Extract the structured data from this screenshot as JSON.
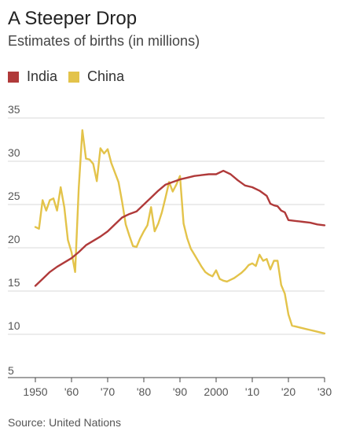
{
  "title": "A Steeper Drop",
  "subtitle": "Estimates of births (in millions)",
  "source": "Source: United Nations",
  "colors": {
    "india": "#b03a3a",
    "china": "#e3c34a",
    "grid": "#d9d9d9",
    "axis": "#444444"
  },
  "chart_data": {
    "type": "line",
    "title": "A Steeper Drop",
    "subtitle": "Estimates of births (in millions)",
    "xlabel": "",
    "ylabel": "",
    "xlim": [
      1950,
      2030
    ],
    "ylim": [
      5,
      35
    ],
    "y_ticks": [
      5,
      10,
      15,
      20,
      25,
      30,
      35
    ],
    "y_tick_labels": [
      "5",
      "10",
      "15",
      "20",
      "25",
      "30",
      "35"
    ],
    "x_ticks": [
      1950,
      1960,
      1970,
      1980,
      1990,
      2000,
      2010,
      2020,
      2030
    ],
    "x_tick_labels": [
      "1950",
      "'60",
      "'70",
      "'80",
      "'90",
      "2000",
      "'10",
      "'20",
      "'30"
    ],
    "grid": "horizontal",
    "legend_position": "top-left",
    "series": [
      {
        "name": "India",
        "color": "#b03a3a",
        "x": [
          1950,
          1952,
          1954,
          1956,
          1958,
          1960,
          1962,
          1964,
          1966,
          1968,
          1970,
          1972,
          1974,
          1976,
          1978,
          1980,
          1982,
          1984,
          1986,
          1988,
          1990,
          1992,
          1994,
          1996,
          1998,
          2000,
          2002,
          2004,
          2006,
          2008,
          2010,
          2012,
          2014,
          2015,
          2016,
          2017,
          2018,
          2019,
          2020,
          2022,
          2024,
          2026,
          2028,
          2030
        ],
        "y": [
          15.6,
          16.4,
          17.2,
          17.8,
          18.3,
          18.8,
          19.5,
          20.3,
          20.8,
          21.3,
          21.9,
          22.7,
          23.5,
          23.9,
          24.2,
          25.0,
          25.8,
          26.6,
          27.3,
          27.6,
          27.9,
          28.1,
          28.3,
          28.4,
          28.5,
          28.5,
          28.9,
          28.5,
          27.8,
          27.2,
          27.0,
          26.6,
          26.0,
          25.1,
          24.9,
          24.8,
          24.3,
          24.1,
          23.2,
          23.1,
          23.0,
          22.9,
          22.7,
          22.6
        ]
      },
      {
        "name": "China",
        "color": "#e3c34a",
        "x": [
          1950,
          1951,
          1952,
          1953,
          1954,
          1955,
          1956,
          1957,
          1958,
          1959,
          1960,
          1961,
          1962,
          1963,
          1964,
          1965,
          1966,
          1967,
          1968,
          1969,
          1970,
          1971,
          1972,
          1973,
          1974,
          1975,
          1976,
          1977,
          1978,
          1979,
          1980,
          1981,
          1982,
          1983,
          1984,
          1985,
          1986,
          1987,
          1988,
          1989,
          1990,
          1991,
          1992,
          1993,
          1994,
          1995,
          1996,
          1997,
          1998,
          1999,
          2000,
          2001,
          2002,
          2003,
          2004,
          2005,
          2006,
          2007,
          2008,
          2009,
          2010,
          2011,
          2012,
          2013,
          2014,
          2015,
          2016,
          2017,
          2018,
          2019,
          2020,
          2021,
          2022,
          2023,
          2024,
          2025,
          2026,
          2027,
          2028,
          2029,
          2030
        ],
        "y": [
          22.4,
          22.2,
          25.5,
          24.3,
          25.5,
          25.7,
          24.3,
          27.0,
          24.7,
          20.9,
          19.5,
          17.2,
          26.9,
          33.6,
          30.3,
          30.2,
          29.7,
          27.7,
          31.5,
          30.9,
          31.4,
          29.8,
          28.7,
          27.6,
          25.3,
          22.7,
          21.4,
          20.2,
          20.1,
          21.1,
          21.9,
          22.6,
          24.7,
          21.9,
          22.8,
          24.1,
          25.8,
          27.6,
          26.5,
          27.3,
          28.3,
          22.8,
          21.1,
          19.9,
          19.2,
          18.5,
          17.8,
          17.2,
          16.9,
          16.7,
          17.4,
          16.4,
          16.2,
          16.1,
          16.3,
          16.5,
          16.8,
          17.1,
          17.5,
          18.0,
          18.2,
          17.9,
          19.2,
          18.5,
          18.7,
          17.5,
          18.5,
          18.5,
          15.7,
          14.7,
          12.3,
          11.0,
          10.9,
          10.8,
          10.7,
          10.6,
          10.5,
          10.4,
          10.3,
          10.2,
          10.1
        ]
      }
    ]
  }
}
